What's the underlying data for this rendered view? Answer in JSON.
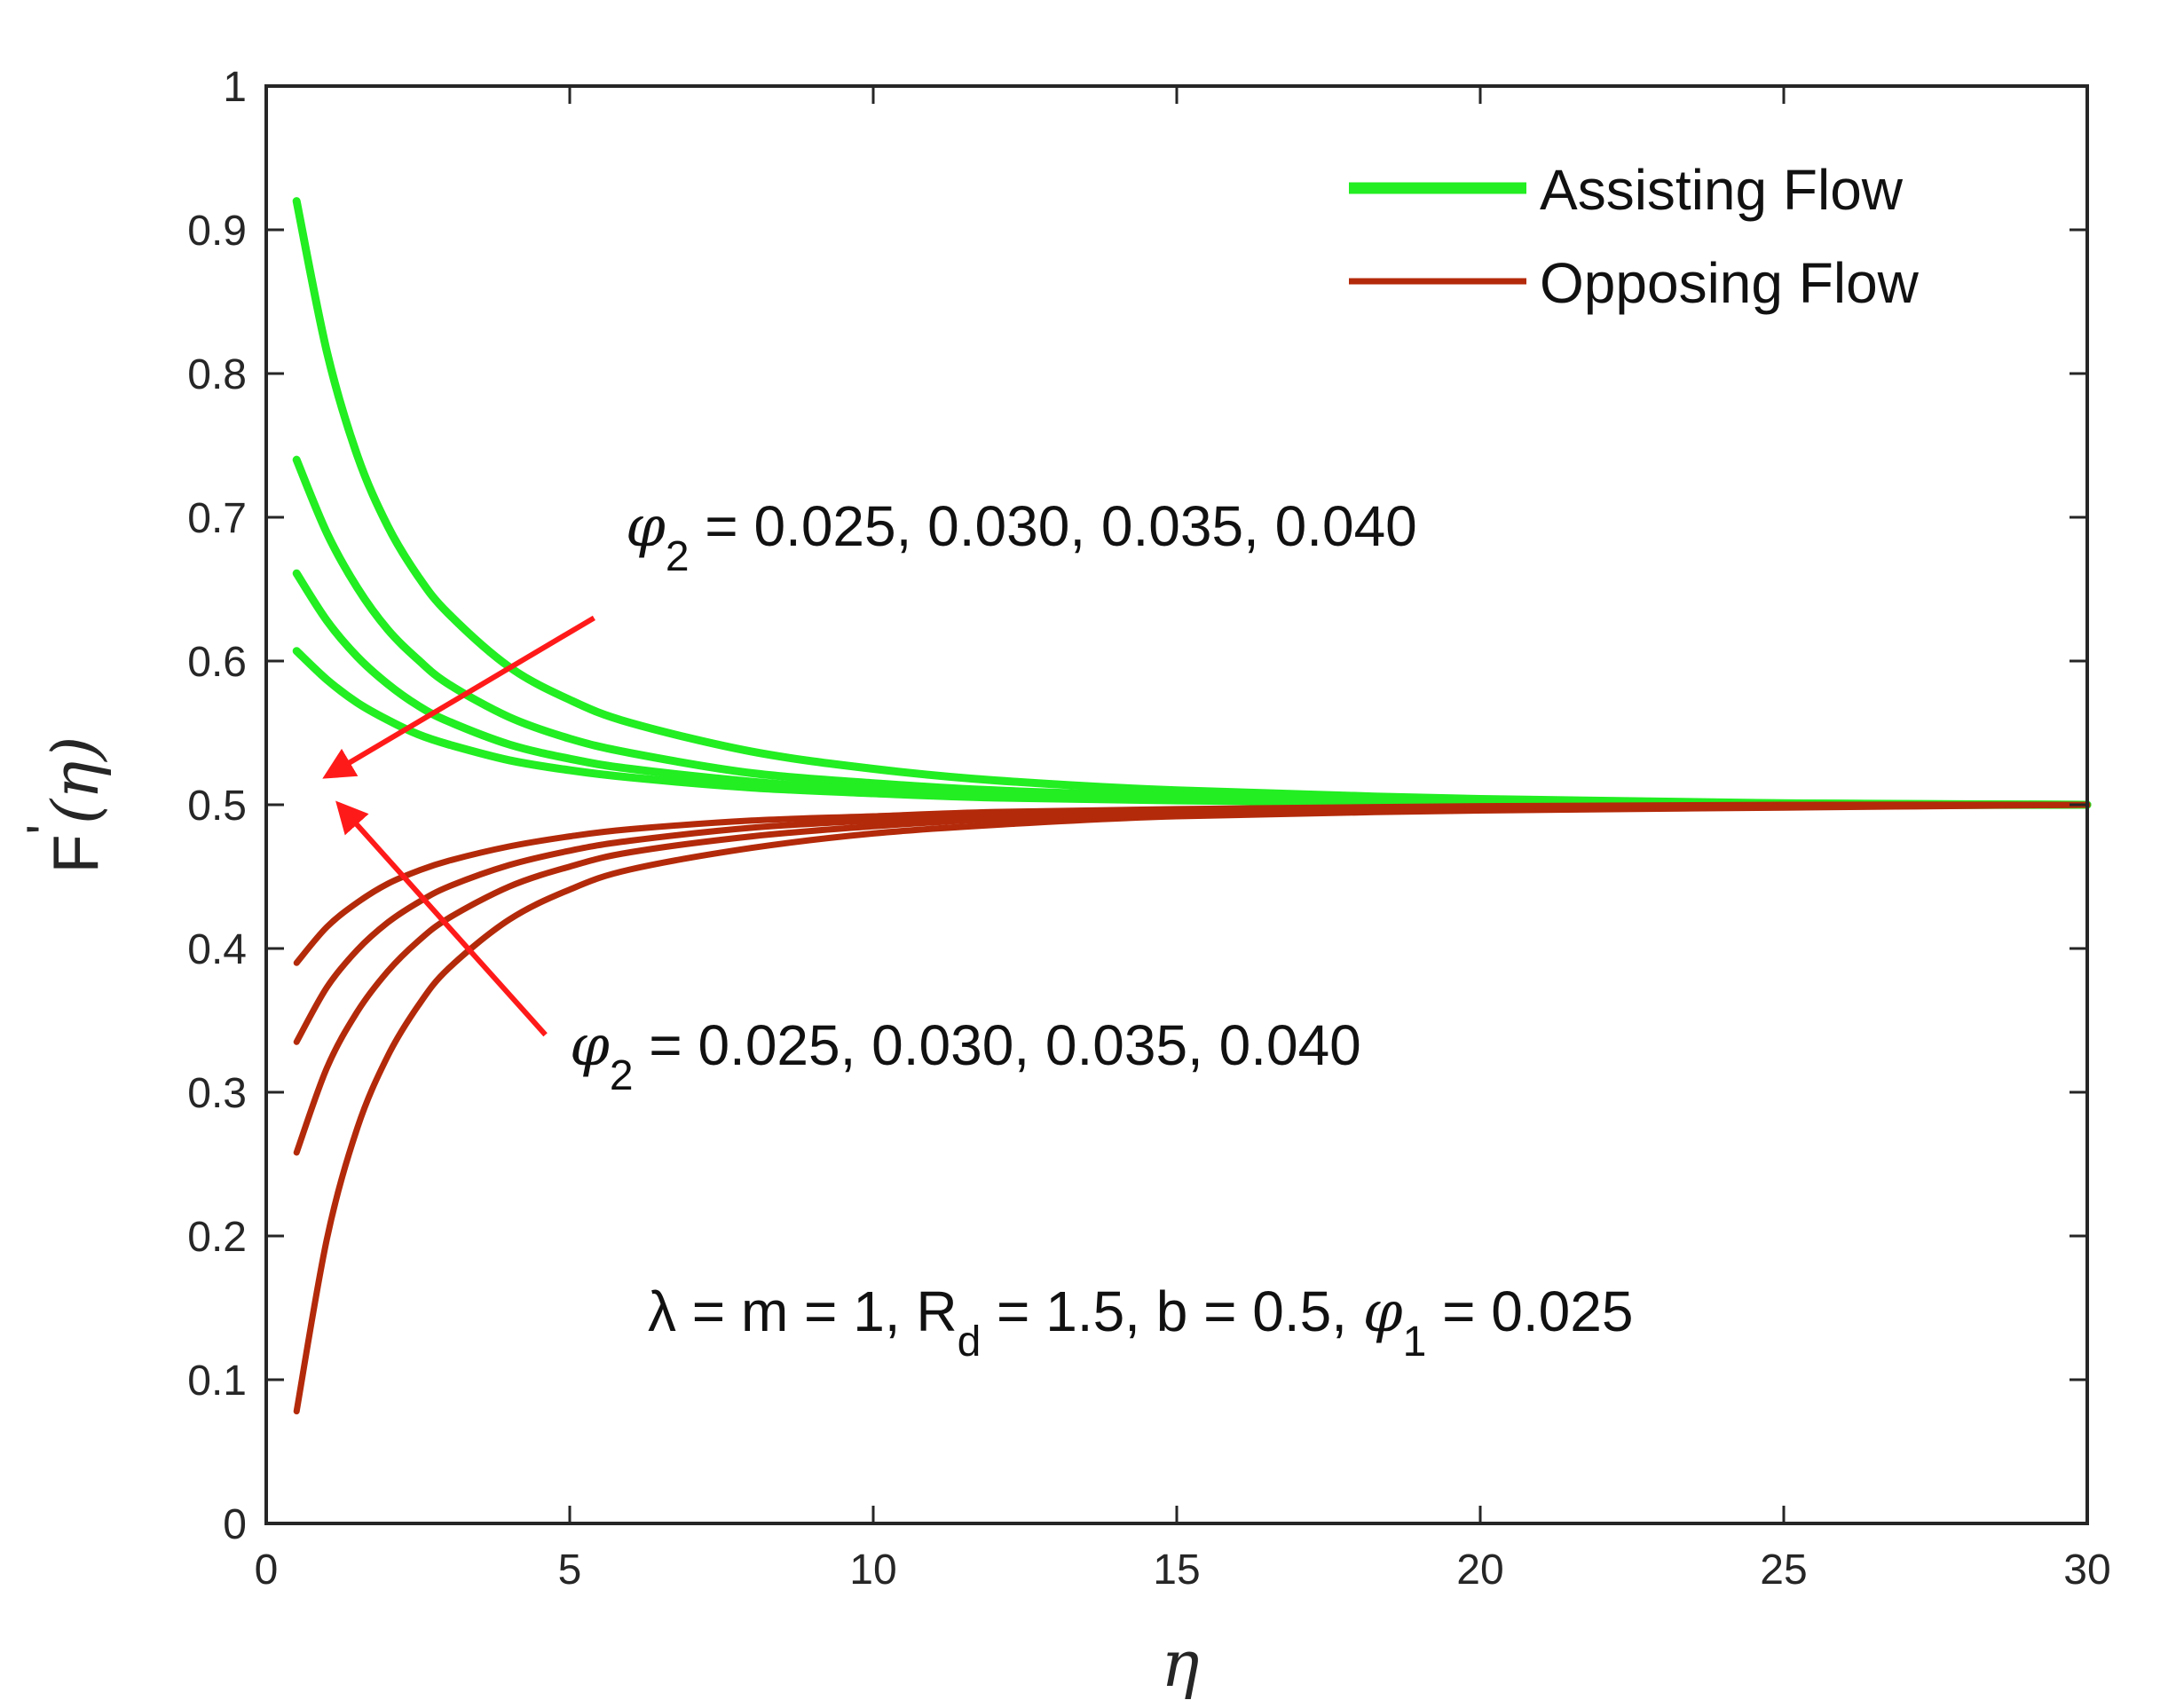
{
  "chart_data": {
    "type": "line",
    "title": "",
    "xlabel": "η",
    "ylabel_main": "F",
    "ylabel_prime": "'",
    "ylabel_arg": "(η)",
    "xlim": [
      0,
      30
    ],
    "ylim": [
      0,
      1
    ],
    "xticks": [
      "0",
      "5",
      "10",
      "15",
      "20",
      "25",
      "30"
    ],
    "yticks": [
      "0",
      "0.1",
      "0.2",
      "0.3",
      "0.4",
      "0.5",
      "0.6",
      "0.7",
      "0.8",
      "0.9",
      "1"
    ],
    "grid": false,
    "legend_position": "top-right",
    "legend": [
      {
        "label": "Assisting Flow",
        "color": "#22ee22"
      },
      {
        "label": "Opposing Flow",
        "color": "#b32a0a"
      }
    ],
    "x": [
      0.5,
      1,
      1.5,
      2,
      2.5,
      3,
      4,
      5,
      6,
      8,
      10,
      12,
      15,
      20,
      25,
      30
    ],
    "series": [
      {
        "group": "Assisting Flow",
        "color": "#22ee22",
        "values": [
          0.92,
          0.815,
          0.743,
          0.694,
          0.659,
          0.633,
          0.596,
          0.573,
          0.557,
          0.537,
          0.525,
          0.517,
          0.51,
          0.504,
          0.501,
          0.5
        ]
      },
      {
        "group": "Assisting Flow",
        "color": "#22ee22",
        "values": [
          0.74,
          0.689,
          0.651,
          0.622,
          0.601,
          0.584,
          0.561,
          0.546,
          0.536,
          0.522,
          0.515,
          0.51,
          0.506,
          0.502,
          0.501,
          0.5
        ]
      },
      {
        "group": "Assisting Flow",
        "color": "#22ee22",
        "values": [
          0.661,
          0.628,
          0.603,
          0.584,
          0.569,
          0.558,
          0.542,
          0.532,
          0.525,
          0.516,
          0.51,
          0.507,
          0.504,
          0.502,
          0.5,
          0.5
        ]
      },
      {
        "group": "Assisting Flow",
        "color": "#22ee22",
        "values": [
          0.607,
          0.587,
          0.571,
          0.559,
          0.549,
          0.542,
          0.531,
          0.524,
          0.519,
          0.512,
          0.508,
          0.505,
          0.503,
          0.501,
          0.5,
          0.5
        ]
      },
      {
        "group": "Opposing Flow",
        "color": "#b32a0a",
        "values": [
          0.39,
          0.415,
          0.432,
          0.445,
          0.454,
          0.461,
          0.471,
          0.478,
          0.483,
          0.489,
          0.492,
          0.495,
          0.497,
          0.499,
          0.5,
          0.5
        ]
      },
      {
        "group": "Opposing Flow",
        "color": "#b32a0a",
        "values": [
          0.335,
          0.373,
          0.399,
          0.418,
          0.432,
          0.443,
          0.458,
          0.468,
          0.475,
          0.484,
          0.489,
          0.493,
          0.496,
          0.498,
          0.499,
          0.5
        ]
      },
      {
        "group": "Opposing Flow",
        "color": "#b32a0a",
        "values": [
          0.258,
          0.317,
          0.356,
          0.384,
          0.405,
          0.421,
          0.443,
          0.457,
          0.467,
          0.478,
          0.485,
          0.49,
          0.494,
          0.497,
          0.499,
          0.5
        ]
      },
      {
        "group": "Opposing Flow",
        "color": "#b32a0a",
        "values": [
          0.078,
          0.198,
          0.275,
          0.325,
          0.36,
          0.386,
          0.42,
          0.441,
          0.455,
          0.47,
          0.48,
          0.486,
          0.492,
          0.496,
          0.498,
          0.5
        ]
      }
    ],
    "annotations": [
      {
        "id": "assist",
        "symbol": "φ",
        "sub": "2",
        "text": " = 0.025, 0.030, 0.035, 0.040",
        "arrow_from": [
          5.4,
          0.63
        ],
        "arrow_to": [
          1.0,
          0.52
        ],
        "color": "#ff1a1a"
      },
      {
        "id": "oppose",
        "symbol": "φ",
        "sub": "2",
        "text": " = 0.025, 0.030, 0.035, 0.040",
        "arrow_from": [
          4.6,
          0.34
        ],
        "arrow_to": [
          1.2,
          0.5
        ],
        "color": "#ff1a1a"
      }
    ],
    "params": {
      "t1": "λ = m = 1, R",
      "t1_sub": "d",
      "t2": " = 1.5, b = 0.5, ",
      "t3": "φ",
      "t3_sub": "1",
      "t4": " = 0.025"
    }
  }
}
